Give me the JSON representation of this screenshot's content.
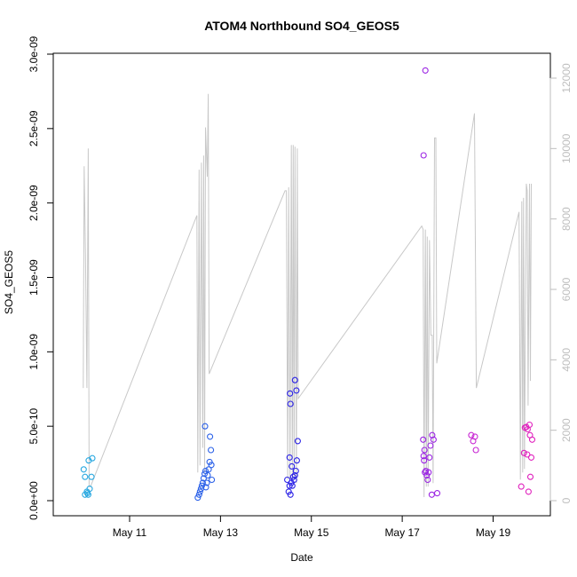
{
  "chart_data": {
    "type": "scatter",
    "title": "ATOM4 Northbound SO4_GEOS5",
    "xlabel": "Date",
    "ylabel": "SO4_GEOS5",
    "x_unit": "day of May",
    "xlim": [
      9.32,
      20.26
    ],
    "ylim": [
      0,
      3e-09
    ],
    "y2lim": [
      0,
      12000
    ],
    "x_ticks": [
      {
        "value": 11,
        "label": "May 11"
      },
      {
        "value": 13,
        "label": "May 13"
      },
      {
        "value": 15,
        "label": "May 15"
      },
      {
        "value": 17,
        "label": "May 17"
      },
      {
        "value": 19,
        "label": "May 19"
      }
    ],
    "y_ticks": [
      {
        "value": 0,
        "label": "0.0e+00"
      },
      {
        "value": 5e-10,
        "label": "5.0e-10"
      },
      {
        "value": 1e-09,
        "label": "1.0e-09"
      },
      {
        "value": 1.5e-09,
        "label": "1.5e-09"
      },
      {
        "value": 2e-09,
        "label": "2.0e-09"
      },
      {
        "value": 2.5e-09,
        "label": "2.5e-09"
      },
      {
        "value": 3e-09,
        "label": "3.0e-09"
      }
    ],
    "y2_ticks": [
      {
        "value": 0,
        "label": "0"
      },
      {
        "value": 2000,
        "label": "2000"
      },
      {
        "value": 4000,
        "label": "4000"
      },
      {
        "value": 6000,
        "label": "6000"
      },
      {
        "value": 8000,
        "label": "8000"
      },
      {
        "value": 10000,
        "label": "10000"
      },
      {
        "value": 12000,
        "label": "12000"
      }
    ],
    "colors": {
      "axis": "#000000",
      "secondary_axis": "#bebebe",
      "altitude_line": "#c8c8c8"
    },
    "series": [
      {
        "name": "SO4_GEOS5",
        "marker": "open-circle",
        "points": [
          {
            "x": 9.99,
            "y": 2.1e-10,
            "color": "#29a8e0"
          },
          {
            "x": 10.02,
            "y": 1.6e-10,
            "color": "#29a8e0"
          },
          {
            "x": 10.06,
            "y": 6e-11,
            "color": "#29a8e0"
          },
          {
            "x": 10.1,
            "y": 2.7e-10,
            "color": "#29a8e0"
          },
          {
            "x": 10.12,
            "y": 8e-11,
            "color": "#29a8e0"
          },
          {
            "x": 10.16,
            "y": 1.6e-10,
            "color": "#29a8e0"
          },
          {
            "x": 10.18,
            "y": 2.85e-10,
            "color": "#29a8e0"
          },
          {
            "x": 10.02,
            "y": 4e-11,
            "color": "#29a8e0"
          },
          {
            "x": 10.07,
            "y": 5e-11,
            "color": "#29a8e0"
          },
          {
            "x": 10.09,
            "y": 4e-11,
            "color": "#29a8e0"
          },
          {
            "x": 12.5,
            "y": 2e-11,
            "color": "#2b61e8"
          },
          {
            "x": 12.53,
            "y": 4e-11,
            "color": "#2b61e8"
          },
          {
            "x": 12.55,
            "y": 6e-11,
            "color": "#2b61e8"
          },
          {
            "x": 12.57,
            "y": 8e-11,
            "color": "#2b61e8"
          },
          {
            "x": 12.59,
            "y": 1e-10,
            "color": "#2b61e8"
          },
          {
            "x": 12.61,
            "y": 1.2e-10,
            "color": "#2b61e8"
          },
          {
            "x": 12.63,
            "y": 1.5e-10,
            "color": "#2b61e8"
          },
          {
            "x": 12.65,
            "y": 1.8e-10,
            "color": "#2b61e8"
          },
          {
            "x": 12.67,
            "y": 2e-10,
            "color": "#2b61e8"
          },
          {
            "x": 12.7,
            "y": 1.2e-10,
            "color": "#2b61e8"
          },
          {
            "x": 12.72,
            "y": 1.7e-10,
            "color": "#2b61e8"
          },
          {
            "x": 12.74,
            "y": 2.1e-10,
            "color": "#2b61e8"
          },
          {
            "x": 12.76,
            "y": 2.6e-10,
            "color": "#2b61e8"
          },
          {
            "x": 12.68,
            "y": 9e-11,
            "color": "#2b61e8"
          },
          {
            "x": 12.8,
            "y": 2.4e-10,
            "color": "#2b61e8"
          },
          {
            "x": 12.66,
            "y": 5e-10,
            "color": "#2b61e8"
          },
          {
            "x": 12.77,
            "y": 4.3e-10,
            "color": "#2b61e8"
          },
          {
            "x": 12.79,
            "y": 3.4e-10,
            "color": "#2b61e8"
          },
          {
            "x": 12.81,
            "y": 1.4e-10,
            "color": "#2b61e8"
          },
          {
            "x": 14.47,
            "y": 1.4e-10,
            "color": "#2a21e6"
          },
          {
            "x": 14.5,
            "y": 6e-11,
            "color": "#2a21e6"
          },
          {
            "x": 14.52,
            "y": 1e-10,
            "color": "#2a21e6"
          },
          {
            "x": 14.54,
            "y": 4e-11,
            "color": "#2a21e6"
          },
          {
            "x": 14.56,
            "y": 1.2e-10,
            "color": "#2a21e6"
          },
          {
            "x": 14.58,
            "y": 1e-10,
            "color": "#2a21e6"
          },
          {
            "x": 14.6,
            "y": 1.6e-10,
            "color": "#2a21e6"
          },
          {
            "x": 14.62,
            "y": 1.4e-10,
            "color": "#2a21e6"
          },
          {
            "x": 14.64,
            "y": 1.7e-10,
            "color": "#2a21e6"
          },
          {
            "x": 14.66,
            "y": 2e-10,
            "color": "#2a21e6"
          },
          {
            "x": 14.52,
            "y": 2.9e-10,
            "color": "#2a21e6"
          },
          {
            "x": 14.57,
            "y": 2.3e-10,
            "color": "#2a21e6"
          },
          {
            "x": 14.68,
            "y": 2.7e-10,
            "color": "#2a21e6"
          },
          {
            "x": 14.53,
            "y": 7.2e-10,
            "color": "#2a21e6"
          },
          {
            "x": 14.54,
            "y": 6.5e-10,
            "color": "#2a21e6"
          },
          {
            "x": 14.64,
            "y": 8.1e-10,
            "color": "#2a21e6"
          },
          {
            "x": 14.67,
            "y": 7.4e-10,
            "color": "#2a21e6"
          },
          {
            "x": 14.7,
            "y": 4e-10,
            "color": "#2a21e6"
          },
          {
            "x": 17.46,
            "y": 4.1e-10,
            "color": "#9b24e3"
          },
          {
            "x": 17.47,
            "y": 3e-10,
            "color": "#9b24e3"
          },
          {
            "x": 17.48,
            "y": 2.7e-10,
            "color": "#9b24e3"
          },
          {
            "x": 17.49,
            "y": 3.4e-10,
            "color": "#9b24e3"
          },
          {
            "x": 17.5,
            "y": 1.9e-10,
            "color": "#9b24e3"
          },
          {
            "x": 17.52,
            "y": 2e-10,
            "color": "#9b24e3"
          },
          {
            "x": 17.54,
            "y": 1.7e-10,
            "color": "#9b24e3"
          },
          {
            "x": 17.56,
            "y": 1.4e-10,
            "color": "#9b24e3"
          },
          {
            "x": 17.58,
            "y": 1.9e-10,
            "color": "#9b24e3"
          },
          {
            "x": 17.6,
            "y": 2.9e-10,
            "color": "#9b24e3"
          },
          {
            "x": 17.62,
            "y": 3.7e-10,
            "color": "#9b24e3"
          },
          {
            "x": 17.66,
            "y": 4.4e-10,
            "color": "#9b24e3"
          },
          {
            "x": 17.69,
            "y": 4.1e-10,
            "color": "#9b24e3"
          },
          {
            "x": 17.47,
            "y": 2.32e-09,
            "color": "#9b24e3"
          },
          {
            "x": 17.51,
            "y": 2.89e-09,
            "color": "#9b24e3"
          },
          {
            "x": 17.65,
            "y": 4e-11,
            "color": "#9b24e3"
          },
          {
            "x": 17.77,
            "y": 5e-11,
            "color": "#9b24e3"
          },
          {
            "x": 18.52,
            "y": 4.4e-10,
            "color": "#c826d3"
          },
          {
            "x": 18.56,
            "y": 4e-10,
            "color": "#c826d3"
          },
          {
            "x": 18.6,
            "y": 4.3e-10,
            "color": "#c826d3"
          },
          {
            "x": 18.62,
            "y": 3.4e-10,
            "color": "#c826d3"
          },
          {
            "x": 19.62,
            "y": 9.5e-11,
            "color": "#e020bd"
          },
          {
            "x": 19.68,
            "y": 3.2e-10,
            "color": "#e020bd"
          },
          {
            "x": 19.7,
            "y": 4.9e-10,
            "color": "#e020bd"
          },
          {
            "x": 19.73,
            "y": 4.95e-10,
            "color": "#e020bd"
          },
          {
            "x": 19.75,
            "y": 3.1e-10,
            "color": "#e020bd"
          },
          {
            "x": 19.76,
            "y": 4.8e-10,
            "color": "#e020bd"
          },
          {
            "x": 19.78,
            "y": 6e-11,
            "color": "#e020bd"
          },
          {
            "x": 19.8,
            "y": 5.1e-10,
            "color": "#e020bd"
          },
          {
            "x": 19.82,
            "y": 1.6e-10,
            "color": "#e020bd"
          },
          {
            "x": 19.84,
            "y": 2.9e-10,
            "color": "#e020bd"
          },
          {
            "x": 19.86,
            "y": 4.1e-10,
            "color": "#e020bd"
          },
          {
            "x": 19.81,
            "y": 4.4e-10,
            "color": "#e020bd"
          }
        ]
      },
      {
        "name": "Altitude",
        "axis": "secondary",
        "line": [
          [
            9.98,
            3200
          ],
          [
            10.0,
            9500
          ],
          [
            10.03,
            7000
          ],
          [
            10.06,
            3200
          ],
          [
            10.09,
            10000
          ],
          [
            10.11,
            400
          ],
          [
            10.14,
            400
          ],
          [
            12.48,
            8100
          ],
          [
            12.5,
            800
          ],
          [
            12.53,
            9400
          ],
          [
            12.55,
            1000
          ],
          [
            12.58,
            9600
          ],
          [
            12.61,
            1500
          ],
          [
            12.63,
            9800
          ],
          [
            12.65,
            800
          ],
          [
            12.67,
            10600
          ],
          [
            12.71,
            9200
          ],
          [
            12.73,
            11550
          ],
          [
            12.75,
            3600
          ],
          [
            14.42,
            8800
          ],
          [
            14.45,
            8800
          ],
          [
            14.48,
            600
          ],
          [
            14.5,
            8900
          ],
          [
            14.53,
            600
          ],
          [
            14.56,
            10100
          ],
          [
            14.58,
            600
          ],
          [
            14.6,
            10100
          ],
          [
            14.62,
            600
          ],
          [
            14.64,
            10050
          ],
          [
            14.67,
            500
          ],
          [
            14.69,
            10000
          ],
          [
            14.71,
            2900
          ],
          [
            17.43,
            7800
          ],
          [
            17.46,
            7700
          ],
          [
            17.48,
            100
          ],
          [
            17.51,
            7700
          ],
          [
            17.53,
            400
          ],
          [
            17.55,
            7500
          ],
          [
            17.57,
            400
          ],
          [
            17.6,
            7400
          ],
          [
            17.63,
            4700
          ],
          [
            17.66,
            4700
          ],
          [
            17.68,
            500
          ],
          [
            17.71,
            10300
          ],
          [
            17.74,
            10300
          ],
          [
            17.76,
            3900
          ],
          [
            18.59,
            11000
          ],
          [
            18.63,
            3200
          ],
          [
            19.57,
            8200
          ],
          [
            19.6,
            600
          ],
          [
            19.63,
            8500
          ],
          [
            19.65,
            800
          ],
          [
            19.67,
            8600
          ],
          [
            19.69,
            900
          ],
          [
            19.73,
            9000
          ],
          [
            19.75,
            8800
          ],
          [
            19.77,
            2700
          ],
          [
            19.8,
            9000
          ],
          [
            19.82,
            3400
          ],
          [
            19.84,
            9000
          ]
        ]
      }
    ]
  }
}
